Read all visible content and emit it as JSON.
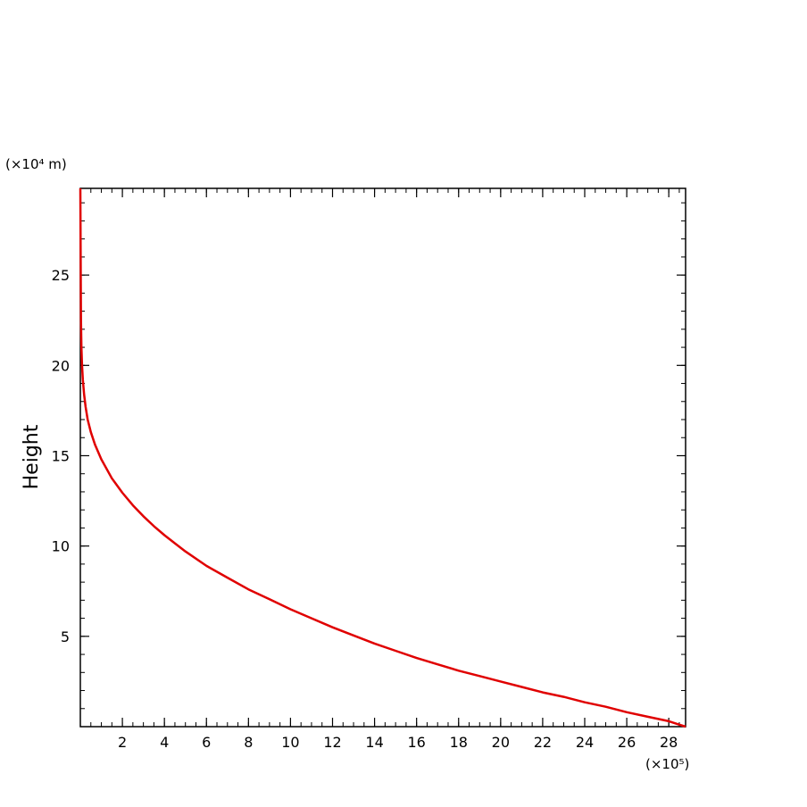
{
  "chart_data": {
    "type": "line",
    "title": "",
    "xlabel": "",
    "ylabel": "Height",
    "x_multiplier_label": "(×10⁵)",
    "y_multiplier_label": "(×10⁴ m)",
    "xlim": [
      0,
      28.8
    ],
    "ylim": [
      0,
      29.8
    ],
    "x_ticks": [
      2,
      4,
      6,
      8,
      10,
      12,
      14,
      16,
      18,
      20,
      22,
      24,
      26,
      28
    ],
    "y_ticks": [
      5,
      10,
      15,
      20,
      25
    ],
    "grid": false,
    "legend": "none",
    "series": [
      {
        "color": "#e00000",
        "x": [
          28.8,
          28.0,
          27.0,
          26.0,
          25.0,
          24.0,
          23.0,
          22.0,
          21.0,
          20.0,
          19.0,
          18.0,
          17.0,
          16.0,
          15.0,
          14.0,
          13.0,
          12.0,
          11.0,
          10.0,
          9.0,
          8.0,
          7.0,
          6.0,
          5.0,
          4.5,
          4.0,
          3.5,
          3.0,
          2.5,
          2.0,
          1.5,
          1.0,
          0.7,
          0.5,
          0.35,
          0.25,
          0.18,
          0.12,
          0.08,
          0.05,
          0.03,
          0.02,
          0.0
        ],
        "y": [
          0.0,
          0.3,
          0.55,
          0.8,
          1.1,
          1.35,
          1.65,
          1.9,
          2.2,
          2.5,
          2.8,
          3.1,
          3.45,
          3.8,
          4.2,
          4.6,
          5.05,
          5.5,
          6.0,
          6.5,
          7.05,
          7.6,
          8.25,
          8.9,
          9.7,
          10.15,
          10.6,
          11.1,
          11.65,
          12.25,
          12.95,
          13.75,
          14.8,
          15.6,
          16.3,
          17.0,
          17.7,
          18.4,
          19.2,
          20.0,
          21.0,
          22.5,
          24.5,
          29.8
        ]
      }
    ]
  }
}
